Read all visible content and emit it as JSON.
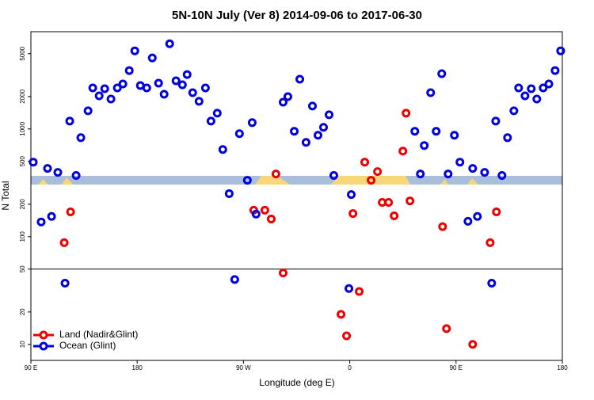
{
  "chart_data": {
    "type": "scatter",
    "title": "5N-10N July (Ver 8)   2014-09-06 to 2017-06-30",
    "xlabel": "Longitude (deg E)",
    "ylabel": "N Total",
    "xlim": [
      90,
      540
    ],
    "xticks": [
      {
        "value": 90,
        "label": "90 E"
      },
      {
        "value": 180,
        "label": "180"
      },
      {
        "value": 270,
        "label": "90 W"
      },
      {
        "value": 360,
        "label": "0"
      },
      {
        "value": 450,
        "label": "90 E"
      },
      {
        "value": 540,
        "label": "180"
      }
    ],
    "ylim": [
      7.1,
      8000
    ],
    "yscale": "log",
    "yticks": [
      10,
      20,
      50,
      100,
      200,
      500,
      1000,
      2000,
      5000
    ],
    "hlines": [
      50
    ],
    "legend": "lower left",
    "series": [
      {
        "name": "Land (Nadir&Glint)",
        "color": "#ee0000",
        "x": [
          118.2,
          123.6,
          278.7,
          288.1,
          293.5,
          297.5,
          303.6,
          352.6,
          357.3,
          362.7,
          368.0,
          372.7,
          378.1,
          383.5,
          387.5,
          392.9,
          397.6,
          405.0,
          407.7,
          411.0,
          438.6,
          441.9,
          464.1,
          478.9,
          484.2
        ],
        "values": [
          88,
          170,
          176,
          176,
          146,
          382,
          46,
          19,
          12,
          164,
          31,
          492,
          334,
          402,
          208,
          208,
          156,
          623,
          1402,
          215,
          124,
          14,
          10,
          88,
          170
        ]
      },
      {
        "name": "Ocean (Glint)",
        "color": "#0000dd",
        "x": [
          92.0,
          98.7,
          104.1,
          107.5,
          112.8,
          118.9,
          122.9,
          128.3,
          132.3,
          138.4,
          142.4,
          147.8,
          152.5,
          157.8,
          163.2,
          167.9,
          173.3,
          178.0,
          182.7,
          188.1,
          192.8,
          198.1,
          202.8,
          207.5,
          212.9,
          218.3,
          222.3,
          227.0,
          232.4,
          237.8,
          242.5,
          247.8,
          252.5,
          257.9,
          262.6,
          266.6,
          273.3,
          277.4,
          280.7,
          303.6,
          307.6,
          313.0,
          317.7,
          323.0,
          328.4,
          333.1,
          337.8,
          342.5,
          346.5,
          359.3,
          361.3,
          415.1,
          419.8,
          423.1,
          428.5,
          433.2,
          437.9,
          443.3,
          448.6,
          453.3,
          460.1,
          464.1,
          468.1,
          474.2,
          480.2,
          483.6,
          488.9,
          493.6,
          499.0,
          503.0,
          508.4,
          513.7,
          518.4,
          523.8,
          528.6,
          533.9,
          538.6
        ],
        "values": [
          492,
          137,
          430,
          154,
          395,
          37,
          1184,
          370,
          830,
          1474,
          2404,
          2030,
          2365,
          1897,
          2404,
          2617,
          3485,
          5311,
          2529,
          2404,
          4563,
          2660,
          2100,
          6180,
          2800,
          2570,
          3200,
          2173,
          1805,
          2404,
          1184,
          1402,
          645,
          251,
          40,
          904,
          334,
          1145,
          162,
          1774,
          1997,
          951,
          2895,
          750,
          1631,
          874,
          1035,
          1355,
          370,
          33,
          246,
          951,
          382,
          702,
          2173,
          951,
          3258,
          382,
          874,
          492,
          139,
          430,
          154,
          395,
          37,
          1184,
          370,
          830,
          1474,
          2404,
          2030,
          2365,
          1897,
          2404,
          2617,
          3485,
          5311
        ]
      }
    ]
  }
}
